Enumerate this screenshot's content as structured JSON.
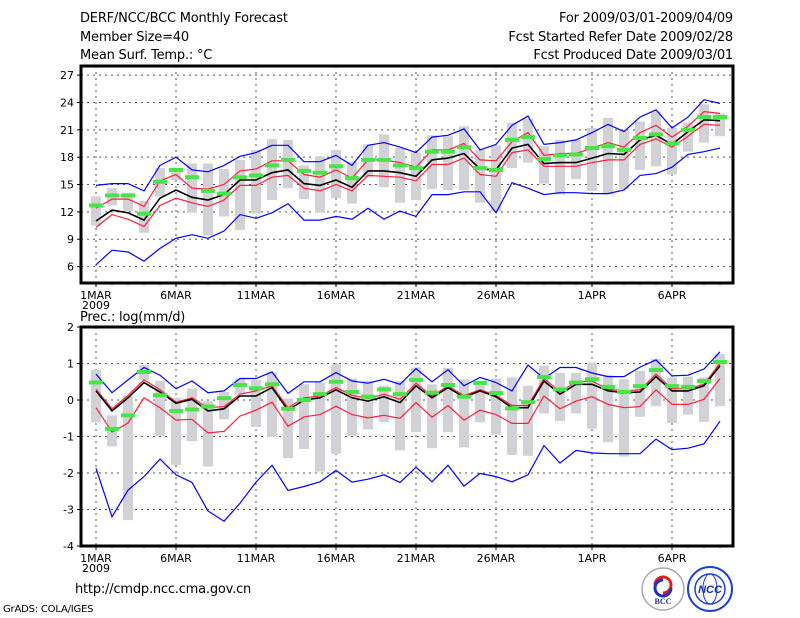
{
  "header": {
    "title": "DERF/NCC/BCC Monthly Forecast",
    "member_size": "Member Size=40",
    "variable": "Mean Surf. Temp.: °C",
    "period": "For 2009/03/01-2009/04/09",
    "started": "Fcst Started Refer Date 2009/02/28",
    "produced": "Fcst Produced Date 2009/03/01"
  },
  "footer": {
    "url": "http://cmdp.ncc.cma.gov.cn",
    "credit": "GrADS: COLA/IGES",
    "logo_bcc": "BCC",
    "logo_ncc": "NCC"
  },
  "colors": {
    "max_min": "#0000ff",
    "spread": "#ff1e3c",
    "mean": "#000000",
    "green": "#46e646",
    "gray": "#d2d2d6"
  },
  "chart_data": [
    {
      "type": "line",
      "title": "Mean Surf. Temp.: °C",
      "ylabel": "",
      "ylim": [
        4.2,
        28
      ],
      "yticks": [
        6,
        9,
        12,
        15,
        18,
        21,
        24,
        27
      ],
      "xlim_days": [
        1,
        40
      ],
      "xticks": [
        {
          "day": 1,
          "label": "1MAR",
          "sub": "2009"
        },
        {
          "day": 6,
          "label": "6MAR"
        },
        {
          "day": 11,
          "label": "11MAR"
        },
        {
          "day": 16,
          "label": "16MAR"
        },
        {
          "day": 21,
          "label": "21MAR"
        },
        {
          "day": 26,
          "label": "26MAR"
        },
        {
          "day": 32,
          "label": "1APR"
        },
        {
          "day": 37,
          "label": "6APR"
        }
      ],
      "grid": true,
      "series": [
        {
          "name": "max",
          "kind": "line",
          "color": "#0000ff",
          "values": [
            14.9,
            15.1,
            15.1,
            14.3,
            17.1,
            18.0,
            16.6,
            16.4,
            17.1,
            18.1,
            18.5,
            19.3,
            19.3,
            17.5,
            17.5,
            18.2,
            17.1,
            19.3,
            19.6,
            19.1,
            18.5,
            20.2,
            20.4,
            21.1,
            18.8,
            19.4,
            21.5,
            22.5,
            19.4,
            19.6,
            19.9,
            20.7,
            21.6,
            20.8,
            22.4,
            23.2,
            21.2,
            22.4,
            24.3,
            23.9
          ]
        },
        {
          "name": "min",
          "kind": "line",
          "color": "#0000ff",
          "values": [
            6.2,
            7.8,
            7.6,
            6.6,
            8.0,
            9.1,
            9.5,
            9.1,
            9.9,
            11.7,
            11.3,
            11.9,
            12.9,
            11.1,
            11.1,
            11.5,
            11.2,
            12.4,
            11.2,
            12.1,
            11.5,
            13.9,
            13.9,
            14.2,
            14.2,
            11.9,
            15.2,
            14.6,
            13.9,
            14.1,
            14.1,
            14.0,
            14.0,
            14.4,
            16.0,
            16.2,
            16.9,
            18.3,
            18.6,
            19.0
          ]
        },
        {
          "name": "upper",
          "kind": "line",
          "color": "#ff1e3c",
          "values": [
            12.4,
            13.4,
            13.4,
            12.6,
            15.4,
            16.1,
            14.6,
            14.5,
            15.0,
            16.5,
            16.7,
            17.6,
            17.6,
            16.1,
            15.8,
            16.6,
            15.7,
            17.7,
            17.7,
            17.4,
            16.9,
            18.8,
            18.8,
            19.5,
            17.7,
            17.6,
            19.7,
            20.7,
            18.2,
            18.4,
            18.4,
            19.0,
            19.6,
            19.1,
            20.7,
            21.5,
            20.2,
            21.4,
            23.0,
            22.8
          ]
        },
        {
          "name": "lower",
          "kind": "line",
          "color": "#ff1e3c",
          "values": [
            10.3,
            11.7,
            11.2,
            10.4,
            12.7,
            13.5,
            13.0,
            12.6,
            13.3,
            14.9,
            14.9,
            15.8,
            16.0,
            14.6,
            14.3,
            15.0,
            14.3,
            16.0,
            15.9,
            15.8,
            15.4,
            17.2,
            17.2,
            17.9,
            16.1,
            15.9,
            18.5,
            18.8,
            17.0,
            17.0,
            17.0,
            17.4,
            17.7,
            17.7,
            19.4,
            20.0,
            19.1,
            20.3,
            21.6,
            21.5
          ]
        },
        {
          "name": "mean",
          "kind": "line",
          "color": "#000000",
          "values": [
            11.0,
            12.2,
            11.9,
            11.1,
            13.5,
            14.4,
            13.6,
            13.3,
            13.9,
            15.5,
            15.5,
            16.3,
            16.6,
            15.1,
            14.9,
            15.5,
            14.7,
            16.5,
            16.5,
            16.3,
            15.9,
            17.7,
            17.9,
            18.4,
            16.7,
            16.6,
            19.0,
            19.4,
            17.3,
            17.4,
            17.4,
            17.9,
            18.4,
            18.3,
            19.9,
            20.4,
            19.4,
            20.8,
            22.1,
            22.0
          ]
        },
        {
          "name": "marker",
          "kind": "tick",
          "color": "#46e646",
          "values": [
            12.7,
            13.8,
            13.8,
            11.8,
            15.3,
            16.6,
            15.8,
            14.3,
            14.0,
            15.8,
            16.0,
            17.1,
            17.7,
            16.5,
            16.3,
            17.0,
            15.7,
            17.7,
            17.7,
            17.1,
            16.8,
            18.6,
            18.6,
            19.1,
            16.8,
            16.6,
            19.9,
            20.2,
            17.8,
            18.2,
            18.3,
            19.0,
            19.2,
            18.8,
            20.1,
            20.5,
            19.5,
            21.0,
            22.4,
            22.4
          ]
        },
        {
          "name": "range",
          "kind": "bar",
          "color": "#d2d2d6",
          "high": [
            13.7,
            14.6,
            14.1,
            13.2,
            16.8,
            16.8,
            17.3,
            17.3,
            16.7,
            17.7,
            18.8,
            20.0,
            19.9,
            17.1,
            18.1,
            18.8,
            17.5,
            19.4,
            20.5,
            19.0,
            18.5,
            20.4,
            20.3,
            21.4,
            18.8,
            19.3,
            21.8,
            22.2,
            19.2,
            19.9,
            19.9,
            21.2,
            22.3,
            21.0,
            21.9,
            23.0,
            21.2,
            21.8,
            23.8,
            22.8
          ],
          "low": [
            10.5,
            12.7,
            12.1,
            9.7,
            13.7,
            15.5,
            11.9,
            9.4,
            11.5,
            10.0,
            11.8,
            13.3,
            14.6,
            13.4,
            11.9,
            13.5,
            12.9,
            15.8,
            14.7,
            13.0,
            13.3,
            14.5,
            14.4,
            14.4,
            13.0,
            12.1,
            16.8,
            17.4,
            15.1,
            13.9,
            15.6,
            14.3,
            13.9,
            14.5,
            16.6,
            17.0,
            16.1,
            18.6,
            19.6,
            20.3
          ]
        }
      ]
    },
    {
      "type": "line",
      "title": "Prec.: log(mm/d)",
      "ylabel": "",
      "ylim": [
        -4,
        2
      ],
      "yticks": [
        -4,
        -3,
        -2,
        -1,
        0,
        1,
        2
      ],
      "xlim_days": [
        1,
        40
      ],
      "xticks": [
        {
          "day": 1,
          "label": "1MAR",
          "sub": "2009"
        },
        {
          "day": 6,
          "label": "6MAR"
        },
        {
          "day": 11,
          "label": "11MAR"
        },
        {
          "day": 16,
          "label": "16MAR"
        },
        {
          "day": 21,
          "label": "21MAR"
        },
        {
          "day": 26,
          "label": "26MAR"
        },
        {
          "day": 32,
          "label": "1APR"
        },
        {
          "day": 37,
          "label": "6APR"
        }
      ],
      "grid": true,
      "series": [
        {
          "name": "max",
          "kind": "line",
          "color": "#0000ff",
          "values": [
            0.71,
            0.2,
            0.55,
            0.89,
            0.68,
            0.31,
            0.52,
            0.2,
            0.25,
            0.59,
            0.59,
            0.77,
            0.18,
            0.5,
            0.5,
            0.75,
            0.52,
            0.46,
            0.57,
            0.43,
            0.86,
            0.5,
            0.83,
            0.39,
            0.62,
            0.48,
            0.25,
            0.96,
            0.59,
            0.89,
            0.89,
            0.74,
            0.64,
            0.64,
            0.9,
            1.1,
            0.66,
            0.68,
            0.85,
            1.32
          ]
        },
        {
          "name": "min",
          "kind": "line",
          "color": "#0000ff",
          "values": [
            -1.87,
            -3.2,
            -2.47,
            -2.1,
            -1.62,
            -2.05,
            -2.26,
            -3.04,
            -3.32,
            -2.83,
            -2.25,
            -1.79,
            -2.48,
            -2.37,
            -2.24,
            -1.93,
            -2.25,
            -2.17,
            -2.05,
            -2.26,
            -1.84,
            -2.24,
            -1.79,
            -2.36,
            -2.01,
            -2.1,
            -2.24,
            -2.05,
            -1.25,
            -1.73,
            -1.38,
            -1.45,
            -1.47,
            -1.47,
            -1.47,
            -1.07,
            -1.36,
            -1.32,
            -1.2,
            -0.58
          ]
        },
        {
          "name": "upper",
          "kind": "line",
          "color": "#ff1e3c",
          "values": [
            0.29,
            -0.24,
            0.13,
            0.55,
            0.28,
            -0.06,
            0.06,
            -0.21,
            -0.18,
            0.16,
            0.25,
            0.39,
            -0.21,
            0.06,
            0.11,
            0.34,
            0.13,
            0.04,
            0.16,
            0.02,
            0.46,
            0.11,
            0.39,
            0.12,
            0.28,
            0.13,
            -0.15,
            -0.15,
            0.59,
            0.22,
            0.5,
            0.52,
            0.29,
            0.25,
            0.28,
            0.71,
            0.31,
            0.31,
            0.43,
            1.01
          ]
        },
        {
          "name": "lower",
          "kind": "line",
          "color": "#ff1e3c",
          "values": [
            -0.21,
            -0.88,
            -0.63,
            0.06,
            -0.21,
            -0.55,
            -0.53,
            -0.9,
            -0.86,
            -0.44,
            -0.28,
            -0.06,
            -0.72,
            -0.46,
            -0.4,
            -0.17,
            -0.4,
            -0.49,
            -0.42,
            -0.5,
            -0.07,
            -0.47,
            -0.15,
            -0.55,
            -0.28,
            -0.4,
            -0.64,
            -0.64,
            0.11,
            -0.24,
            -0.03,
            0.09,
            -0.12,
            -0.21,
            -0.18,
            0.28,
            -0.12,
            -0.12,
            0.02,
            0.59
          ]
        },
        {
          "name": "mean",
          "kind": "line",
          "color": "#000000",
          "values": [
            0.25,
            -0.3,
            0.06,
            0.48,
            0.22,
            -0.09,
            0.02,
            -0.3,
            -0.24,
            0.11,
            0.11,
            0.34,
            -0.28,
            0.0,
            0.06,
            0.28,
            0.06,
            -0.03,
            0.09,
            -0.07,
            0.39,
            0.06,
            0.34,
            0.07,
            0.25,
            0.09,
            -0.21,
            -0.21,
            0.52,
            0.16,
            0.43,
            0.43,
            0.25,
            0.2,
            0.22,
            0.64,
            0.25,
            0.25,
            0.39,
            0.94
          ]
        },
        {
          "name": "marker",
          "kind": "tick",
          "color": "#46e646",
          "values": [
            0.48,
            -0.79,
            -0.42,
            0.77,
            0.13,
            -0.3,
            -0.26,
            -0.18,
            0.05,
            0.41,
            0.32,
            0.43,
            -0.24,
            0.0,
            0.16,
            0.5,
            0.22,
            0.09,
            0.29,
            0.16,
            0.55,
            0.2,
            0.41,
            0.09,
            0.47,
            0.19,
            -0.23,
            -0.06,
            0.63,
            0.29,
            0.48,
            0.57,
            0.36,
            0.22,
            0.38,
            0.82,
            0.38,
            0.36,
            0.52,
            1.04
          ]
        },
        {
          "name": "range",
          "kind": "bar",
          "color": "#d2d2d6",
          "high": [
            0.83,
            -0.42,
            0.11,
            0.96,
            0.52,
            0.06,
            0.31,
            -0.03,
            0.22,
            0.59,
            0.55,
            0.75,
            0.04,
            0.43,
            0.48,
            0.98,
            0.59,
            0.52,
            0.39,
            0.52,
            0.89,
            0.43,
            0.88,
            0.57,
            0.52,
            0.59,
            0.62,
            0.39,
            0.94,
            0.74,
            0.74,
            1.03,
            0.68,
            0.57,
            0.8,
            1.12,
            0.62,
            0.64,
            0.62,
            1.26
          ],
          "low": [
            -0.61,
            -1.27,
            -3.29,
            0.55,
            -0.98,
            -1.78,
            -1.13,
            -1.82,
            -0.53,
            0.16,
            -0.74,
            -1.01,
            -1.59,
            -1.34,
            -1.96,
            -1.47,
            -0.98,
            -0.81,
            -0.61,
            -1.38,
            -0.88,
            -1.32,
            -0.88,
            -1.3,
            -0.61,
            -0.95,
            -1.5,
            -1.53,
            -0.37,
            -0.58,
            -0.37,
            -0.79,
            -1.16,
            -1.55,
            -0.46,
            -0.17,
            -0.63,
            -0.4,
            -0.6,
            -0.17
          ]
        }
      ]
    }
  ]
}
